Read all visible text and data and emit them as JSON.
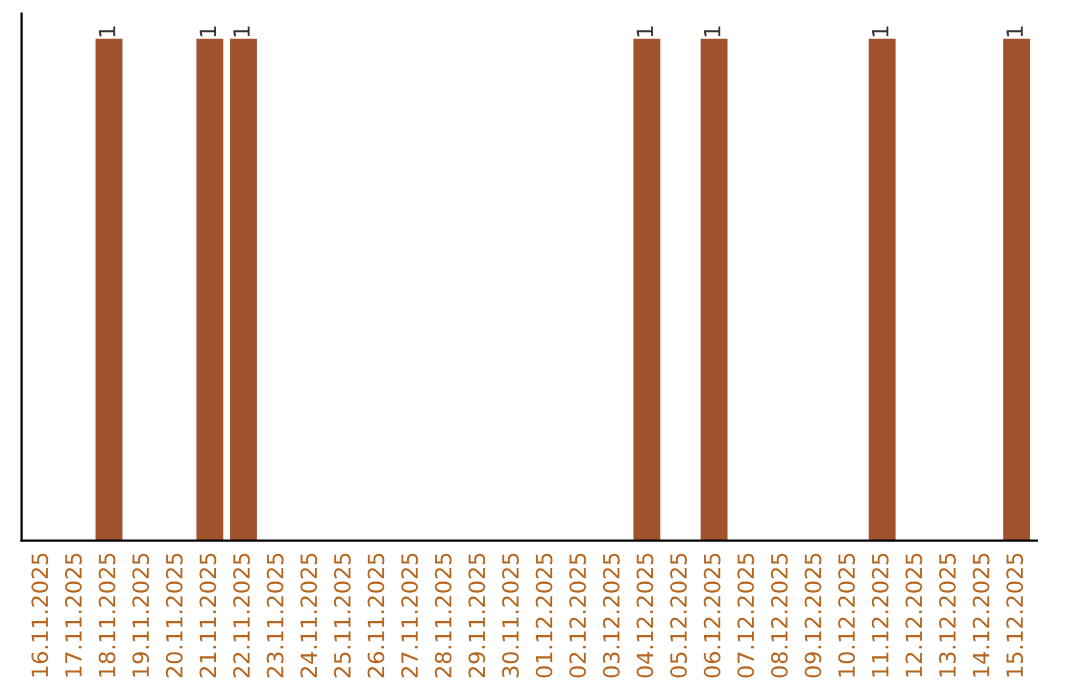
{
  "chart_data": {
    "type": "bar",
    "categories": [
      "16.11.2025",
      "17.11.2025",
      "18.11.2025",
      "19.11.2025",
      "20.11.2025",
      "21.11.2025",
      "22.11.2025",
      "23.11.2025",
      "24.11.2025",
      "25.11.2025",
      "26.11.2025",
      "27.11.2025",
      "28.11.2025",
      "29.11.2025",
      "30.11.2025",
      "01.12.2025",
      "02.12.2025",
      "03.12.2025",
      "04.12.2025",
      "05.12.2025",
      "06.12.2025",
      "07.12.2025",
      "08.12.2025",
      "09.12.2025",
      "10.12.2025",
      "11.12.2025",
      "12.12.2025",
      "13.12.2025",
      "14.12.2025",
      "15.12.2025"
    ],
    "values": [
      0,
      0,
      1,
      0,
      0,
      1,
      1,
      0,
      0,
      0,
      0,
      0,
      0,
      0,
      0,
      0,
      0,
      0,
      1,
      0,
      1,
      0,
      0,
      0,
      0,
      1,
      0,
      0,
      0,
      1
    ],
    "value_labels": [
      null,
      null,
      "1",
      null,
      null,
      "1",
      "1",
      null,
      null,
      null,
      null,
      null,
      null,
      null,
      null,
      null,
      null,
      null,
      "1",
      null,
      "1",
      null,
      null,
      null,
      null,
      "1",
      null,
      null,
      null,
      "1"
    ],
    "color": "#a0522d",
    "tick_labels": "x",
    "grid": false,
    "legend": false
  }
}
